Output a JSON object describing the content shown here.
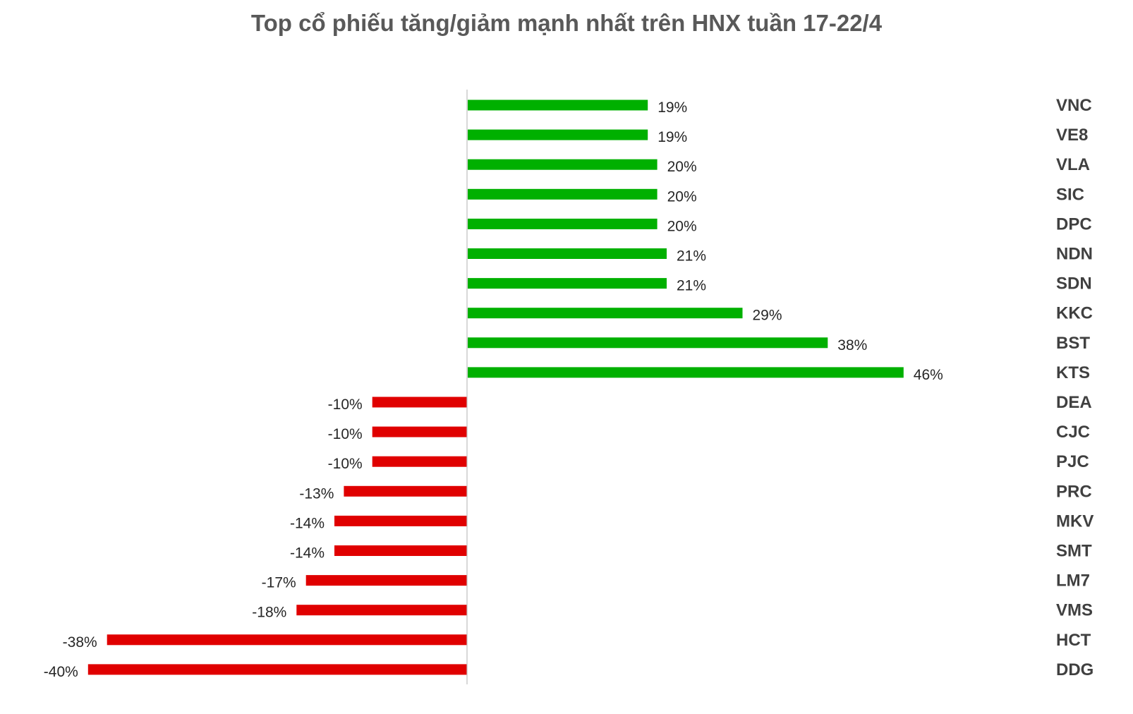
{
  "chart_data": {
    "type": "bar",
    "orientation": "horizontal",
    "title": "Top cổ phiếu tăng/giảm mạnh nhất trên HNX tuần 17-22/4",
    "xlabel": "",
    "ylabel": "",
    "unit": "%",
    "categories": [
      "VNC",
      "VE8",
      "VLA",
      "SIC",
      "DPC",
      "NDN",
      "SDN",
      "KKC",
      "BST",
      "KTS",
      "DEA",
      "CJC",
      "PJC",
      "PRC",
      "MKV",
      "SMT",
      "LM7",
      "VMS",
      "HCT",
      "DDG"
    ],
    "values": [
      19,
      19,
      20,
      20,
      20,
      21,
      21,
      29,
      38,
      46,
      -10,
      -10,
      -10,
      -13,
      -14,
      -14,
      -17,
      -18,
      -38,
      -40
    ],
    "value_labels": [
      "19%",
      "19%",
      "20%",
      "20%",
      "20%",
      "21%",
      "21%",
      "29%",
      "38%",
      "46%",
      "-10%",
      "-10%",
      "-10%",
      "-13%",
      "-14%",
      "-14%",
      "-17%",
      "-18%",
      "-38%",
      "-40%"
    ],
    "xlim": [
      -40,
      46
    ],
    "grid": false,
    "legend": "none",
    "colors": {
      "positive": "#00b000",
      "negative": "#e00000",
      "axis": "#bfbfbf"
    }
  }
}
